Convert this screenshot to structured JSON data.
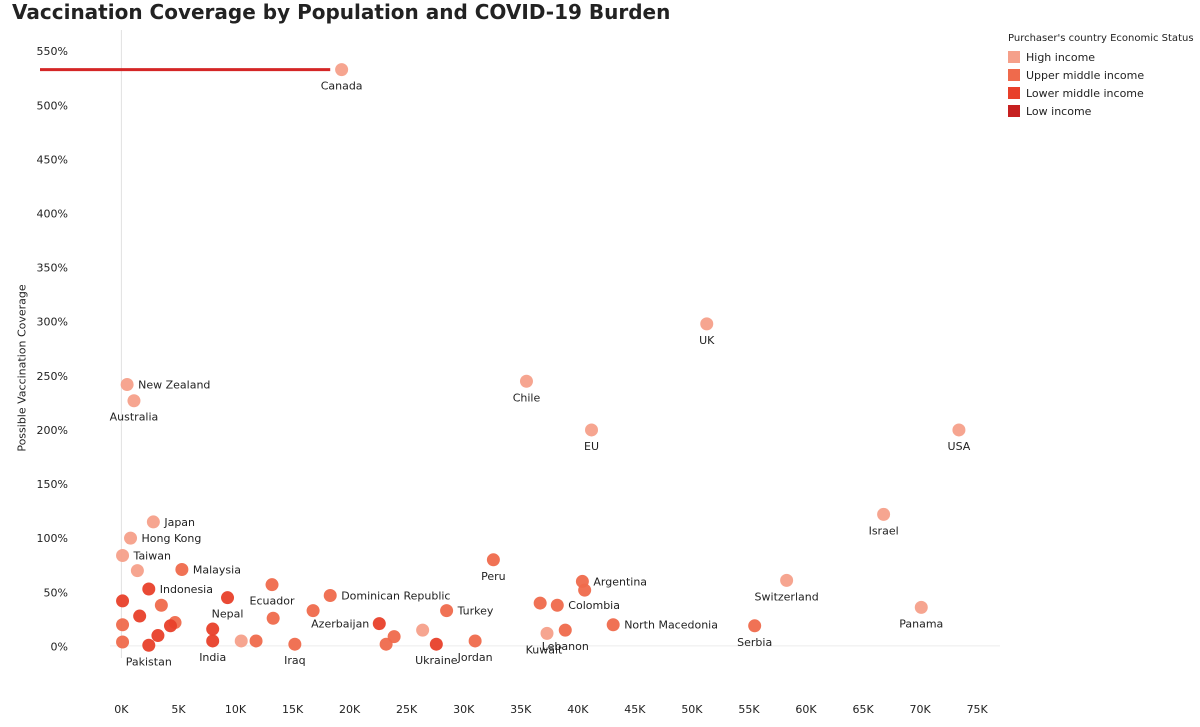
{
  "chart_data": {
    "type": "scatter",
    "title": "Vaccination Coverage by Population and COVID-19 Burden",
    "ylabel": "Possible Vaccination Coverage",
    "xlabel": "",
    "xlim": [
      -1000,
      77000
    ],
    "ylim": [
      -20,
      565
    ],
    "x_ticks": [
      0,
      5000,
      10000,
      15000,
      20000,
      25000,
      30000,
      35000,
      40000,
      45000,
      50000,
      55000,
      60000,
      65000,
      70000,
      75000
    ],
    "x_tick_labels": [
      "0K",
      "5K",
      "10K",
      "15K",
      "20K",
      "25K",
      "30K",
      "35K",
      "40K",
      "45K",
      "50K",
      "55K",
      "60K",
      "65K",
      "70K",
      "75K"
    ],
    "y_ticks": [
      0,
      50,
      100,
      150,
      200,
      250,
      300,
      350,
      400,
      450,
      500,
      550
    ],
    "y_tick_labels": [
      "0%",
      "50%",
      "100%",
      "150%",
      "200%",
      "250%",
      "300%",
      "350%",
      "400%",
      "450%",
      "500%",
      "550%"
    ],
    "grid": "vertical line at x = 0, horizontal baseline",
    "legend": {
      "title": "Purchaser's country Economic  Status",
      "position": "top-right",
      "entries": [
        {
          "label": "High income",
          "color": "#f5a08a"
        },
        {
          "label": "Upper middle income",
          "color": "#ef6a4c"
        },
        {
          "label": "Lower middle income",
          "color": "#e8402a"
        },
        {
          "label": "Low income",
          "color": "#c62020"
        }
      ]
    },
    "series_colors": {
      "high": "#f5a08a",
      "upper": "#ef6a4c",
      "lower": "#e8402a",
      "low": "#c62020"
    },
    "reference_line": {
      "y": 533,
      "x_from": -1000,
      "x_to": 18300,
      "color": "#d42626"
    },
    "points": [
      {
        "label": "Canada",
        "x": 19300,
        "y": 533,
        "group": "high",
        "label_pos": "below"
      },
      {
        "label": "New Zealand",
        "x": 500,
        "y": 242,
        "group": "high",
        "label_pos": "right"
      },
      {
        "label": "Australia",
        "x": 1100,
        "y": 227,
        "group": "high",
        "label_pos": "below"
      },
      {
        "label": "Chile",
        "x": 35500,
        "y": 245,
        "group": "high",
        "label_pos": "below"
      },
      {
        "label": "UK",
        "x": 51300,
        "y": 298,
        "group": "high",
        "label_pos": "below"
      },
      {
        "label": "EU",
        "x": 41200,
        "y": 200,
        "group": "high",
        "label_pos": "below"
      },
      {
        "label": "USA",
        "x": 73400,
        "y": 200,
        "group": "high",
        "label_pos": "below"
      },
      {
        "label": "Israel",
        "x": 66800,
        "y": 122,
        "group": "high",
        "label_pos": "below"
      },
      {
        "label": "Switzerland",
        "x": 58300,
        "y": 61,
        "group": "high",
        "label_pos": "below"
      },
      {
        "label": "Panama",
        "x": 70100,
        "y": 36,
        "group": "high",
        "label_pos": "below"
      },
      {
        "label": "Japan",
        "x": 2800,
        "y": 115,
        "group": "high",
        "label_pos": "right"
      },
      {
        "label": "Hong Kong",
        "x": 800,
        "y": 100,
        "group": "high",
        "label_pos": "right"
      },
      {
        "label": "Taiwan",
        "x": 100,
        "y": 84,
        "group": "high",
        "label_pos": "right"
      },
      {
        "label": "",
        "x": 1400,
        "y": 70,
        "group": "high",
        "label_pos": "none"
      },
      {
        "label": "Kuwait",
        "x": 37300,
        "y": 12,
        "group": "high",
        "label_pos": "below-left"
      },
      {
        "label": "",
        "x": 26400,
        "y": 15,
        "group": "high",
        "label_pos": "none"
      },
      {
        "label": "",
        "x": 10500,
        "y": 5,
        "group": "high",
        "label_pos": "none"
      },
      {
        "label": "Malaysia",
        "x": 5300,
        "y": 71,
        "group": "upper",
        "label_pos": "right"
      },
      {
        "label": "Peru",
        "x": 32600,
        "y": 80,
        "group": "upper",
        "label_pos": "below"
      },
      {
        "label": "Ecuador",
        "x": 13200,
        "y": 57,
        "group": "upper",
        "label_pos": "below"
      },
      {
        "label": "Dominican Republic",
        "x": 18300,
        "y": 47,
        "group": "upper",
        "label_pos": "right"
      },
      {
        "label": "Argentina",
        "x": 40400,
        "y": 60,
        "group": "upper",
        "label_pos": "right"
      },
      {
        "label": "",
        "x": 40600,
        "y": 52,
        "group": "upper",
        "label_pos": "none"
      },
      {
        "label": "Colombia",
        "x": 38200,
        "y": 38,
        "group": "upper",
        "label_pos": "right"
      },
      {
        "label": "",
        "x": 36700,
        "y": 40,
        "group": "upper",
        "label_pos": "none"
      },
      {
        "label": "Turkey",
        "x": 28500,
        "y": 33,
        "group": "upper",
        "label_pos": "right"
      },
      {
        "label": "North Macedonia",
        "x": 43100,
        "y": 20,
        "group": "upper",
        "label_pos": "right"
      },
      {
        "label": "Serbia",
        "x": 55500,
        "y": 19,
        "group": "upper",
        "label_pos": "below"
      },
      {
        "label": "Lebanon",
        "x": 38900,
        "y": 15,
        "group": "upper",
        "label_pos": "below"
      },
      {
        "label": "",
        "x": 13300,
        "y": 26,
        "group": "upper",
        "label_pos": "none"
      },
      {
        "label": "",
        "x": 16800,
        "y": 33,
        "group": "upper",
        "label_pos": "none"
      },
      {
        "label": "Iraq",
        "x": 15200,
        "y": 2,
        "group": "upper",
        "label_pos": "below"
      },
      {
        "label": "",
        "x": 11800,
        "y": 5,
        "group": "upper",
        "label_pos": "none"
      },
      {
        "label": "Jordan",
        "x": 31000,
        "y": 5,
        "group": "upper",
        "label_pos": "below"
      },
      {
        "label": "",
        "x": 23900,
        "y": 9,
        "group": "upper",
        "label_pos": "none"
      },
      {
        "label": "",
        "x": 23200,
        "y": 2,
        "group": "upper",
        "label_pos": "none"
      },
      {
        "label": "",
        "x": 3500,
        "y": 38,
        "group": "upper",
        "label_pos": "none"
      },
      {
        "label": "",
        "x": 4700,
        "y": 22,
        "group": "upper",
        "label_pos": "none"
      },
      {
        "label": "",
        "x": 100,
        "y": 20,
        "group": "upper",
        "label_pos": "none"
      },
      {
        "label": "",
        "x": 100,
        "y": 4,
        "group": "upper",
        "label_pos": "none"
      },
      {
        "label": "Indonesia",
        "x": 2400,
        "y": 53,
        "group": "lower",
        "label_pos": "right"
      },
      {
        "label": "Nepal",
        "x": 9300,
        "y": 45,
        "group": "lower",
        "label_pos": "below"
      },
      {
        "label": "Azerbaijan",
        "x": 22600,
        "y": 21,
        "group": "lower",
        "label_pos": "left-below"
      },
      {
        "label": "Ukraine",
        "x": 27600,
        "y": 2,
        "group": "lower",
        "label_pos": "below"
      },
      {
        "label": "",
        "x": 1600,
        "y": 28,
        "group": "lower",
        "label_pos": "none"
      },
      {
        "label": "",
        "x": 4300,
        "y": 19,
        "group": "lower",
        "label_pos": "none"
      },
      {
        "label": "",
        "x": 3200,
        "y": 10,
        "group": "lower",
        "label_pos": "none"
      },
      {
        "label": "",
        "x": 100,
        "y": 42,
        "group": "lower",
        "label_pos": "none"
      },
      {
        "label": "India",
        "x": 8000,
        "y": 5,
        "group": "lower",
        "label_pos": "below"
      },
      {
        "label": "",
        "x": 8000,
        "y": 16,
        "group": "lower",
        "label_pos": "none"
      },
      {
        "label": "Pakistan",
        "x": 2400,
        "y": 1,
        "group": "lower",
        "label_pos": "below"
      }
    ]
  }
}
